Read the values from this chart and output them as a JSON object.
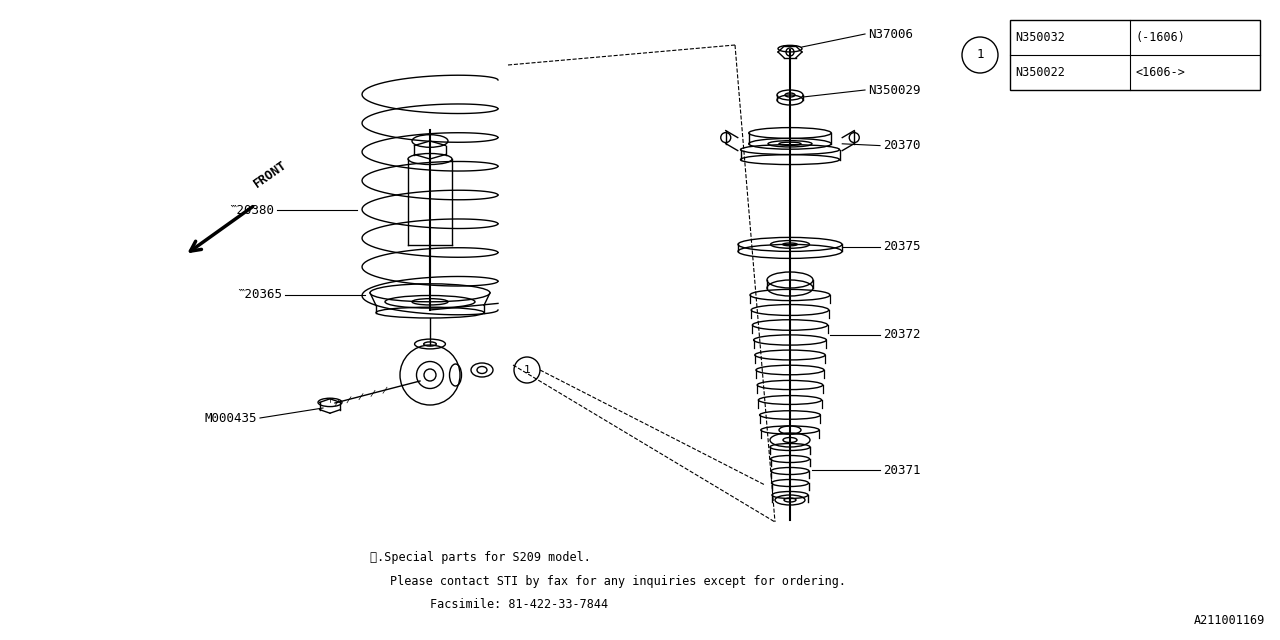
{
  "bg_color": "#ffffff",
  "line_color": "#000000",
  "fig_width": 12.8,
  "fig_height": 6.4,
  "footnote_line1": "※.Special parts for S209 model.",
  "footnote_line2": "Please contact STI by fax for any inquiries except for ordering.",
  "footnote_line3": "Facsimile: 81-422-33-7844",
  "diagram_id": "A211001169",
  "table_rows": [
    [
      "N350032",
      "(-1606)"
    ],
    [
      "N350022",
      "<1606->"
    ]
  ]
}
